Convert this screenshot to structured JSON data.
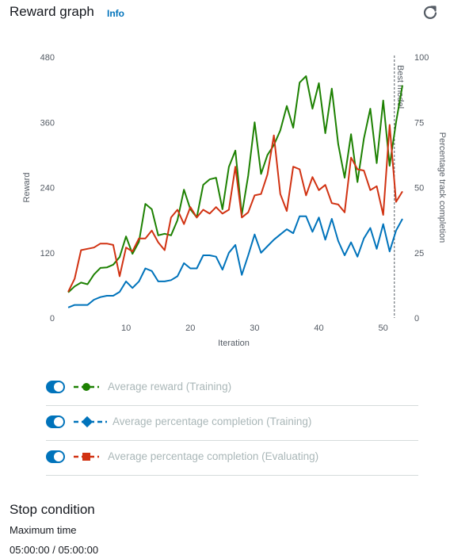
{
  "header": {
    "title": "Reward graph",
    "info": "Info"
  },
  "icons": {
    "refresh": "refresh-icon"
  },
  "legend": [
    {
      "label": "Average reward (Training)",
      "color": "#1d8102",
      "marker": "circle"
    },
    {
      "label": "Average percentage completion (Training)",
      "color": "#0073bb",
      "marker": "diamond"
    },
    {
      "label": "Average percentage completion (Evaluating)",
      "color": "#d13212",
      "marker": "square"
    }
  ],
  "stop_condition": {
    "title": "Stop condition",
    "label": "Maximum time",
    "value": "05:00:00 / 05:00:00"
  },
  "chart_data": {
    "type": "line",
    "xlabel": "Iteration",
    "ylabel": "Reward",
    "y2label": "Percentage track completion",
    "x_ticks": [
      10,
      20,
      30,
      40,
      50
    ],
    "y_ticks": [
      0,
      120,
      240,
      360,
      480
    ],
    "y2_ticks": [
      0,
      25,
      50,
      75,
      100
    ],
    "xlim": [
      0,
      53
    ],
    "ylim": [
      0,
      480
    ],
    "y2lim": [
      0,
      100
    ],
    "grid": false,
    "annotation": {
      "label": "Best model",
      "x": 51
    },
    "series": [
      {
        "name": "Average reward (Training)",
        "axis": "left",
        "color": "#1d8102",
        "x": [
          1,
          2,
          3,
          4,
          5,
          6,
          7,
          8,
          9,
          10,
          11,
          12,
          13,
          14,
          15,
          16,
          17,
          18,
          19,
          20,
          21,
          22,
          23,
          24,
          25,
          26,
          27,
          28,
          29,
          30,
          31,
          32,
          33,
          34,
          35,
          36,
          37,
          38,
          39,
          40,
          41,
          42,
          43,
          44,
          45,
          46,
          47,
          48,
          49,
          50,
          51,
          52,
          53
        ],
        "values": [
          47,
          58,
          65,
          62,
          80,
          92,
          93,
          98,
          112,
          150,
          118,
          140,
          210,
          200,
          152,
          155,
          152,
          180,
          236,
          200,
          185,
          245,
          255,
          258,
          200,
          278,
          308,
          190,
          262,
          360,
          265,
          300,
          318,
          345,
          390,
          350,
          433,
          445,
          385,
          432,
          340,
          422,
          320,
          258,
          338,
          250,
          330,
          385,
          285,
          400,
          280,
          360,
          428
        ]
      },
      {
        "name": "Average percentage completion (Training)",
        "axis": "right",
        "color": "#0073bb",
        "x": [
          1,
          2,
          3,
          4,
          5,
          6,
          7,
          8,
          9,
          10,
          11,
          12,
          13,
          14,
          15,
          16,
          17,
          18,
          19,
          20,
          21,
          22,
          23,
          24,
          25,
          26,
          27,
          28,
          29,
          30,
          31,
          32,
          33,
          34,
          35,
          36,
          37,
          38,
          39,
          40,
          41,
          42,
          43,
          44,
          45,
          46,
          47,
          48,
          49,
          50,
          51,
          52,
          53
        ],
        "values": [
          4,
          5,
          5,
          5,
          7,
          8,
          8.5,
          8.5,
          10,
          14,
          11.5,
          14,
          19,
          18,
          14,
          14,
          14.5,
          16,
          21,
          19,
          19,
          24,
          24,
          23.5,
          18.5,
          25,
          28,
          16.5,
          24,
          32,
          25,
          27.5,
          30,
          32,
          34,
          32.5,
          39,
          39,
          33,
          38.5,
          30,
          38,
          29.5,
          24,
          29,
          23.5,
          30.5,
          34.5,
          26.5,
          36,
          25.5,
          33.5,
          38
        ]
      },
      {
        "name": "Average percentage completion (Evaluating)",
        "axis": "right",
        "color": "#d13212",
        "x": [
          1,
          2,
          3,
          4,
          5,
          6,
          7,
          8,
          9,
          10,
          11,
          12,
          13,
          14,
          15,
          16,
          17,
          18,
          19,
          20,
          21,
          22,
          23,
          24,
          25,
          26,
          27,
          28,
          29,
          30,
          31,
          32,
          33,
          34,
          35,
          36,
          37,
          38,
          39,
          40,
          41,
          42,
          43,
          44,
          45,
          46,
          47,
          48,
          49,
          50,
          51,
          52,
          53
        ],
        "values": [
          10,
          15,
          26,
          26.5,
          27,
          28.5,
          28.5,
          28,
          16,
          27,
          25.5,
          30.5,
          30.5,
          33.5,
          29,
          26,
          38.5,
          41.5,
          36,
          42.5,
          38.5,
          41.5,
          40,
          42.5,
          40,
          41.5,
          58,
          38.5,
          40.5,
          47,
          47.5,
          55,
          70,
          47.5,
          41,
          58,
          57,
          47,
          54,
          49,
          51,
          44,
          43.5,
          40.5,
          61.5,
          57,
          56.5,
          49,
          50.5,
          39.5,
          74,
          44.5,
          48.5
        ]
      }
    ]
  }
}
